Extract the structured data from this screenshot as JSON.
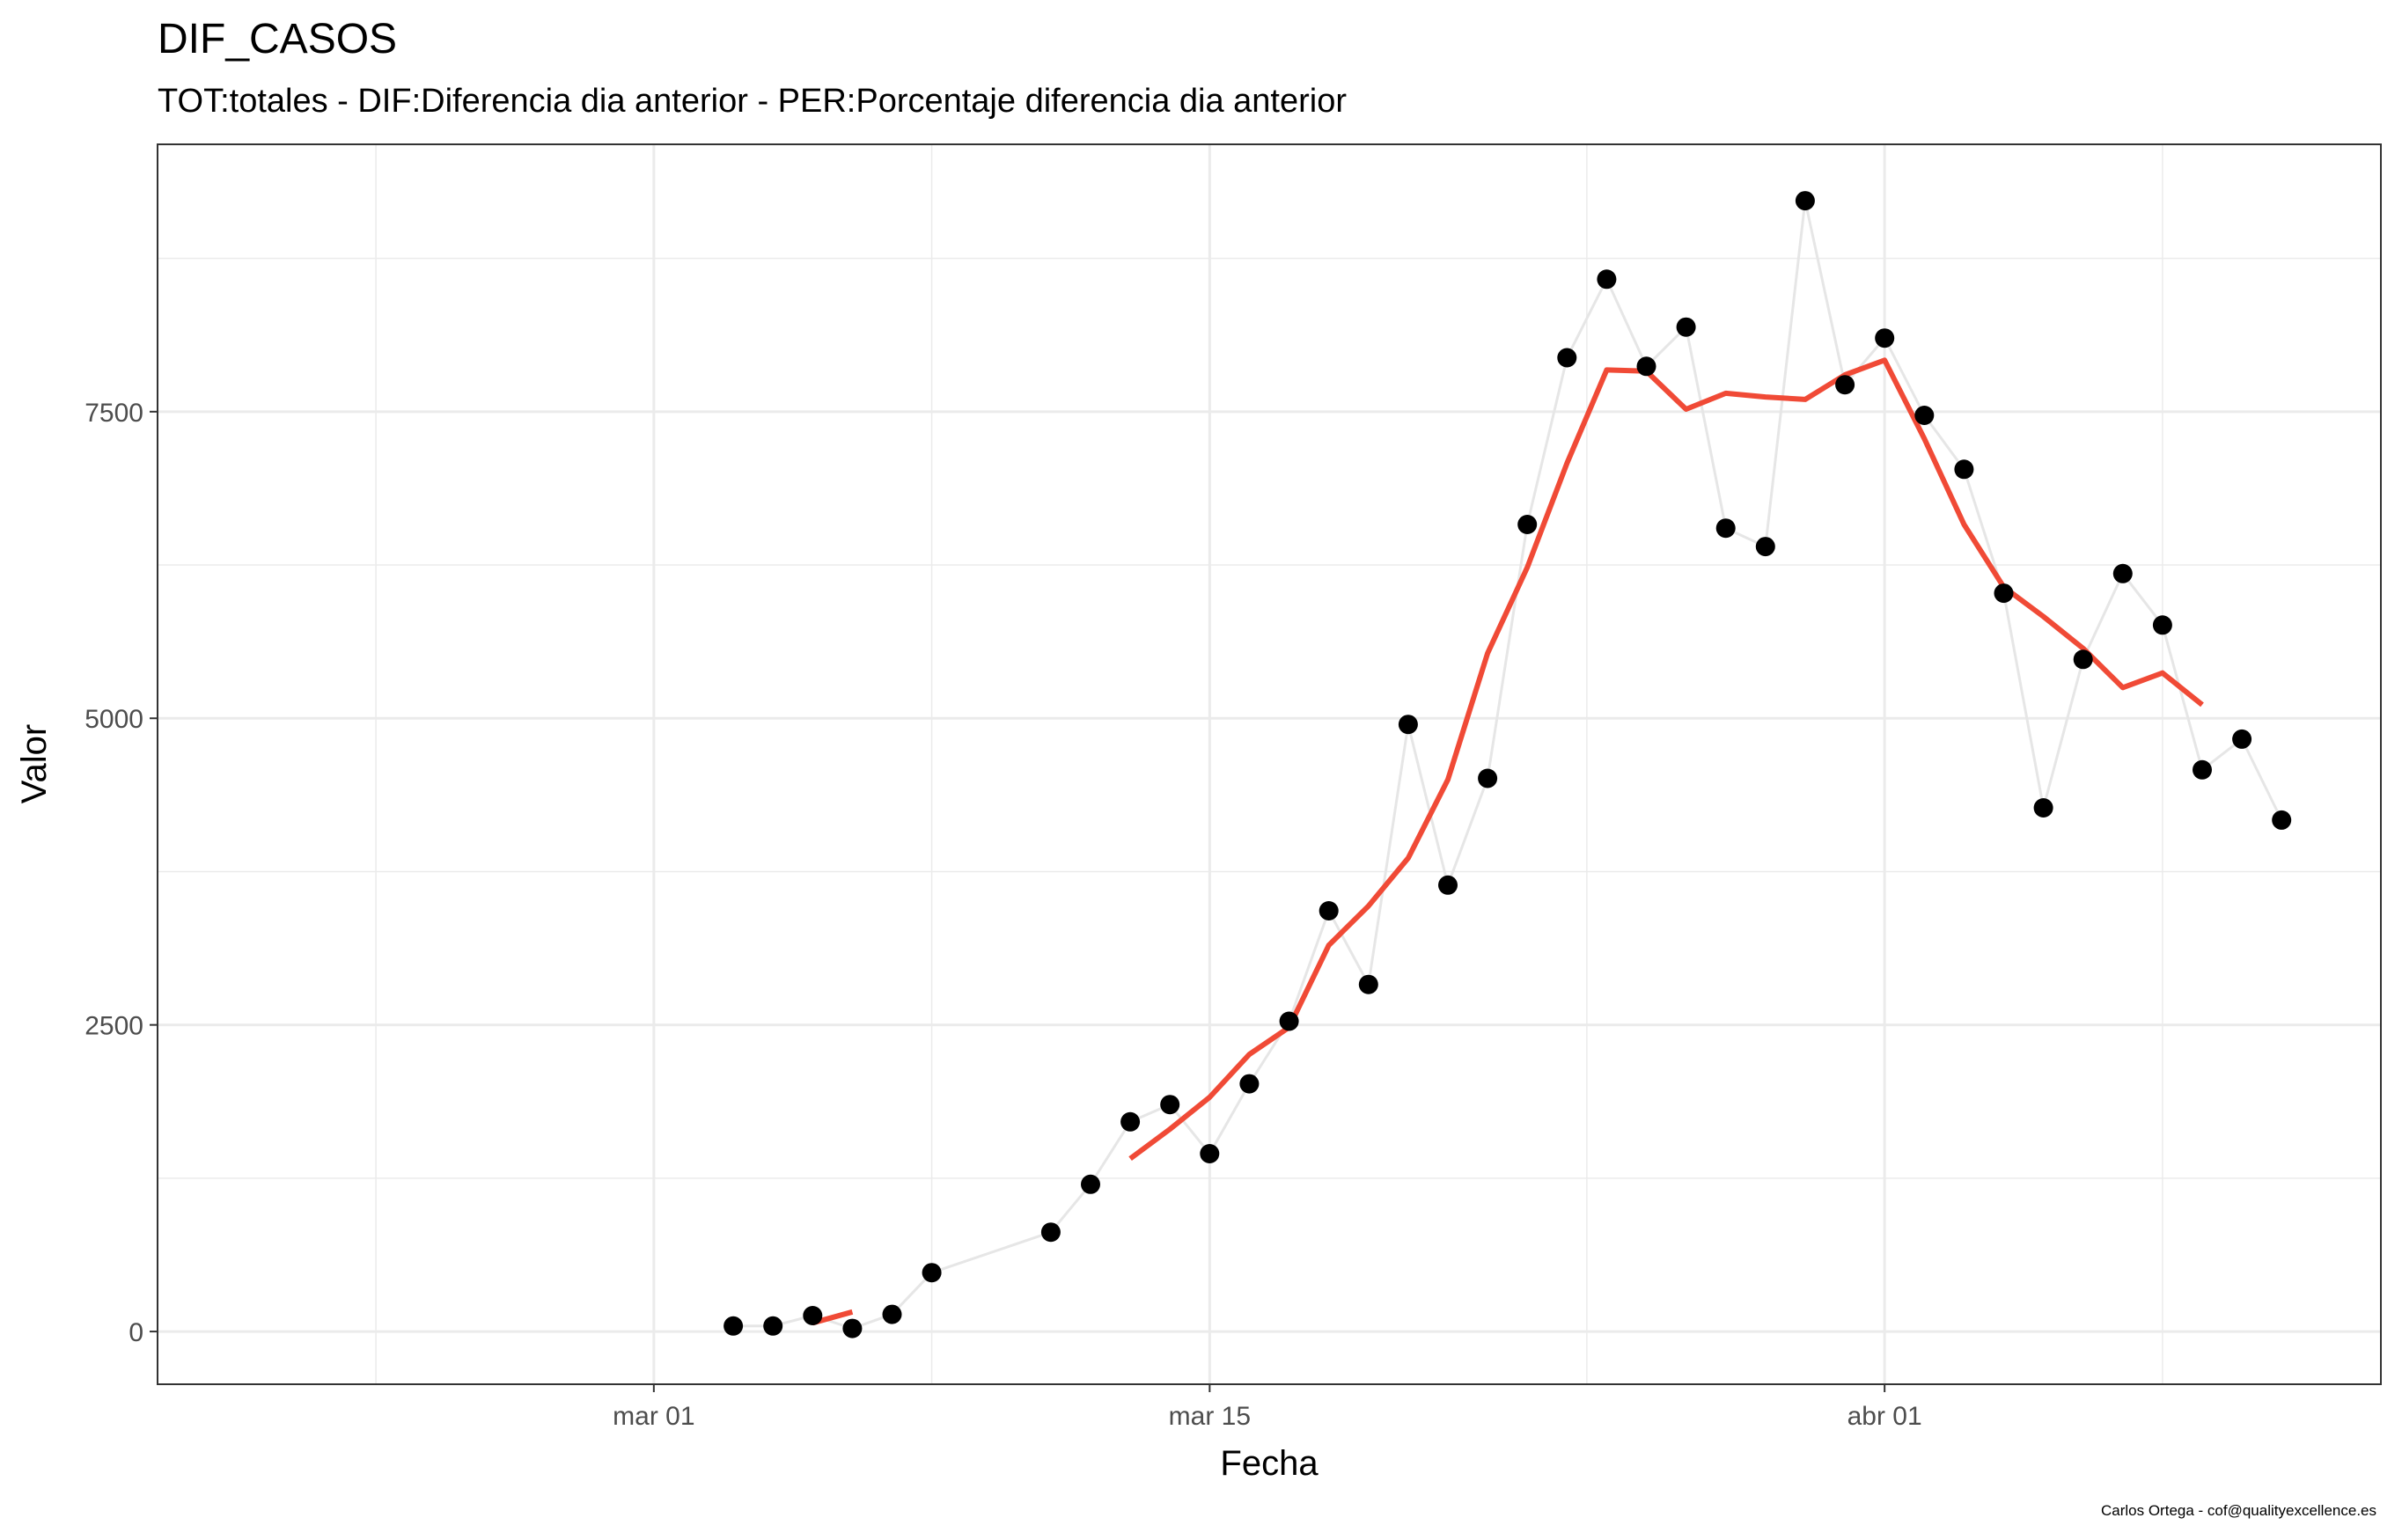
{
  "chart_data": {
    "type": "line",
    "title": "DIF_CASOS",
    "subtitle": "TOT:totales - DIF:Diferencia dia anterior - PER:Porcentaje diferencia dia anterior",
    "xlabel": "Fecha",
    "ylabel": "Valor",
    "caption": "Carlos Ortega - cof@qualityexcellence.es",
    "x_ticks": [
      {
        "label": "mar 01",
        "day": 0
      },
      {
        "label": "mar 15",
        "day": 14
      },
      {
        "label": "abr 01",
        "day": 31
      }
    ],
    "x_minor_days": [
      -7,
      7,
      23.5,
      38
    ],
    "xlim_days": [
      -12.5,
      43.5
    ],
    "y_ticks": [
      0,
      2500,
      5000,
      7500
    ],
    "y_minor": [
      1250,
      3750,
      6250,
      8750
    ],
    "ylim": [
      -430,
      9680
    ],
    "grid": true,
    "legend": "none",
    "colors": {
      "points": "#000000",
      "connecting_line": "#e6e6e6",
      "smooth_line": "#f04a36",
      "grid": "#ebebeb",
      "panel_border": "#333333"
    },
    "series": [
      {
        "type": "points",
        "points": [
          {
            "x": "2020-03-03",
            "y": 45
          },
          {
            "x": "2020-03-04",
            "y": 45
          },
          {
            "x": "2020-03-05",
            "y": 130
          },
          {
            "x": "2020-03-06",
            "y": 25
          },
          {
            "x": "2020-03-07",
            "y": 140
          },
          {
            "x": "2020-03-08",
            "y": 480
          },
          {
            "x": "2020-03-11",
            "y": 810
          },
          {
            "x": "2020-03-12",
            "y": 1200
          },
          {
            "x": "2020-03-13",
            "y": 1710
          },
          {
            "x": "2020-03-14",
            "y": 1850
          },
          {
            "x": "2020-03-15",
            "y": 1450
          },
          {
            "x": "2020-03-16",
            "y": 2020
          },
          {
            "x": "2020-03-17",
            "y": 2530
          },
          {
            "x": "2020-03-18",
            "y": 3430
          },
          {
            "x": "2020-03-19",
            "y": 2830
          },
          {
            "x": "2020-03-20",
            "y": 4950
          },
          {
            "x": "2020-03-21",
            "y": 3640
          },
          {
            "x": "2020-03-22",
            "y": 4510
          },
          {
            "x": "2020-03-23",
            "y": 6580
          },
          {
            "x": "2020-03-24",
            "y": 7940
          },
          {
            "x": "2020-03-25",
            "y": 8580
          },
          {
            "x": "2020-03-26",
            "y": 7870
          },
          {
            "x": "2020-03-27",
            "y": 8190
          },
          {
            "x": "2020-03-28",
            "y": 6550
          },
          {
            "x": "2020-03-29",
            "y": 6400
          },
          {
            "x": "2020-03-30",
            "y": 9220
          },
          {
            "x": "2020-03-31",
            "y": 7720
          },
          {
            "x": "2020-04-01",
            "y": 8100
          },
          {
            "x": "2020-04-02",
            "y": 7470
          },
          {
            "x": "2020-04-03",
            "y": 7030
          },
          {
            "x": "2020-04-04",
            "y": 6020
          },
          {
            "x": "2020-04-05",
            "y": 4270
          },
          {
            "x": "2020-04-06",
            "y": 5480
          },
          {
            "x": "2020-04-07",
            "y": 6180
          },
          {
            "x": "2020-04-08",
            "y": 5760
          },
          {
            "x": "2020-04-09",
            "y": 4580
          },
          {
            "x": "2020-04-10",
            "y": 4830
          },
          {
            "x": "2020-04-11",
            "y": 4170
          }
        ]
      },
      {
        "type": "smoothed-line",
        "segments": [
          [
            {
              "x": "2020-03-05",
              "y": 70
            },
            {
              "x": "2020-03-06",
              "y": 160
            }
          ],
          [
            {
              "x": "2020-03-13",
              "y": 1410
            },
            {
              "x": "2020-03-14",
              "y": 1650
            },
            {
              "x": "2020-03-15",
              "y": 1910
            },
            {
              "x": "2020-03-16",
              "y": 2260
            },
            {
              "x": "2020-03-17",
              "y": 2480
            },
            {
              "x": "2020-03-18",
              "y": 3150
            },
            {
              "x": "2020-03-19",
              "y": 3470
            },
            {
              "x": "2020-03-20",
              "y": 3860
            },
            {
              "x": "2020-03-21",
              "y": 4500
            },
            {
              "x": "2020-03-22",
              "y": 5530
            },
            {
              "x": "2020-03-23",
              "y": 6230
            },
            {
              "x": "2020-03-24",
              "y": 7080
            },
            {
              "x": "2020-03-25",
              "y": 7840
            },
            {
              "x": "2020-03-26",
              "y": 7830
            },
            {
              "x": "2020-03-27",
              "y": 7520
            },
            {
              "x": "2020-03-28",
              "y": 7650
            },
            {
              "x": "2020-03-29",
              "y": 7620
            },
            {
              "x": "2020-03-30",
              "y": 7600
            },
            {
              "x": "2020-03-31",
              "y": 7800
            },
            {
              "x": "2020-04-01",
              "y": 7920
            },
            {
              "x": "2020-04-02",
              "y": 7280
            },
            {
              "x": "2020-04-03",
              "y": 6580
            },
            {
              "x": "2020-04-04",
              "y": 6070
            },
            {
              "x": "2020-04-05",
              "y": 5830
            },
            {
              "x": "2020-04-06",
              "y": 5570
            },
            {
              "x": "2020-04-07",
              "y": 5250
            },
            {
              "x": "2020-04-08",
              "y": 5370
            },
            {
              "x": "2020-04-09",
              "y": 5110
            }
          ]
        ]
      }
    ]
  }
}
